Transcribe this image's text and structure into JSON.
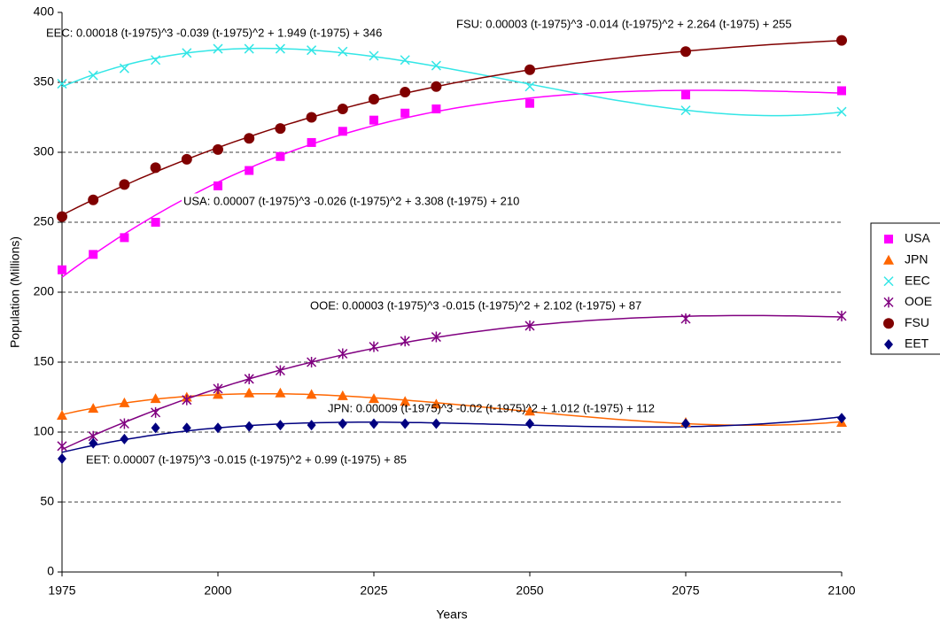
{
  "chart_data": {
    "type": "scatter",
    "x_label": "Years",
    "y_label": "Population (Millions)",
    "x": [
      1975,
      1980,
      1985,
      1990,
      1995,
      2000,
      2005,
      2010,
      2015,
      2020,
      2025,
      2030,
      2035,
      2050,
      2075,
      2100
    ],
    "xlim": [
      1975,
      2100
    ],
    "xticks": [
      1975,
      2000,
      2025,
      2050,
      2075,
      2100
    ],
    "ylim": [
      0,
      400
    ],
    "yticks": [
      0,
      50,
      100,
      150,
      200,
      250,
      300,
      350,
      400
    ],
    "grid": true,
    "legend": "right",
    "trendline": "cubic",
    "series": [
      {
        "name": "USA",
        "color": "#ff00ff",
        "marker": "square",
        "values": [
          216,
          227,
          239,
          250,
          null,
          276,
          287,
          297,
          307,
          315,
          323,
          328,
          331,
          335,
          341,
          344
        ]
      },
      {
        "name": "JPN",
        "color": "#ff6600",
        "marker": "triangle",
        "values": [
          112,
          117,
          121,
          124,
          125,
          127,
          128,
          128,
          127,
          126,
          124,
          122,
          120,
          115,
          107,
          107
        ]
      },
      {
        "name": "EEC",
        "color": "#33e6e6",
        "marker": "cross",
        "values": [
          349,
          355,
          360,
          366,
          371,
          374,
          374,
          374,
          373,
          372,
          369,
          366,
          362,
          347,
          330,
          329
        ]
      },
      {
        "name": "OOE",
        "color": "#800080",
        "marker": "star",
        "values": [
          90,
          97,
          106,
          114,
          123,
          131,
          138,
          144,
          150,
          156,
          161,
          165,
          168,
          176,
          181,
          183
        ]
      },
      {
        "name": "FSU",
        "color": "#800000",
        "marker": "circle",
        "values": [
          254,
          266,
          277,
          289,
          295,
          302,
          310,
          317,
          325,
          331,
          338,
          343,
          347,
          359,
          372,
          380
        ]
      },
      {
        "name": "EET",
        "color": "#000080",
        "marker": "diamond",
        "values": [
          81,
          92,
          95,
          103,
          103,
          103,
          104,
          105,
          105,
          106,
          106,
          106,
          106,
          106,
          106,
          110
        ]
      }
    ],
    "annotations": [
      "USA: 0.00007 (t-1975)^3 -0.026 (t-1975)^2 + 3.308 (t-1975) + 210",
      "JPN: 0.00009 (t-1975)^3 -0.02 (t-1975)^2 + 1.012 (t-1975) + 112",
      "EEC: 0.00018 (t-1975)^3 -0.039 (t-1975)^2 + 1.949 (t-1975) + 346",
      "OOE: 0.00003 (t-1975)^3 -0.015 (t-1975)^2 + 2.102 (t-1975) + 87",
      "FSU: 0.00003 (t-1975)^3 -0.014 (t-1975)^2 + 2.264 (t-1975) + 255",
      "EET: 0.00007 (t-1975)^3 -0.015 (t-1975)^2 + 0.99 (t-1975) + 85"
    ]
  }
}
